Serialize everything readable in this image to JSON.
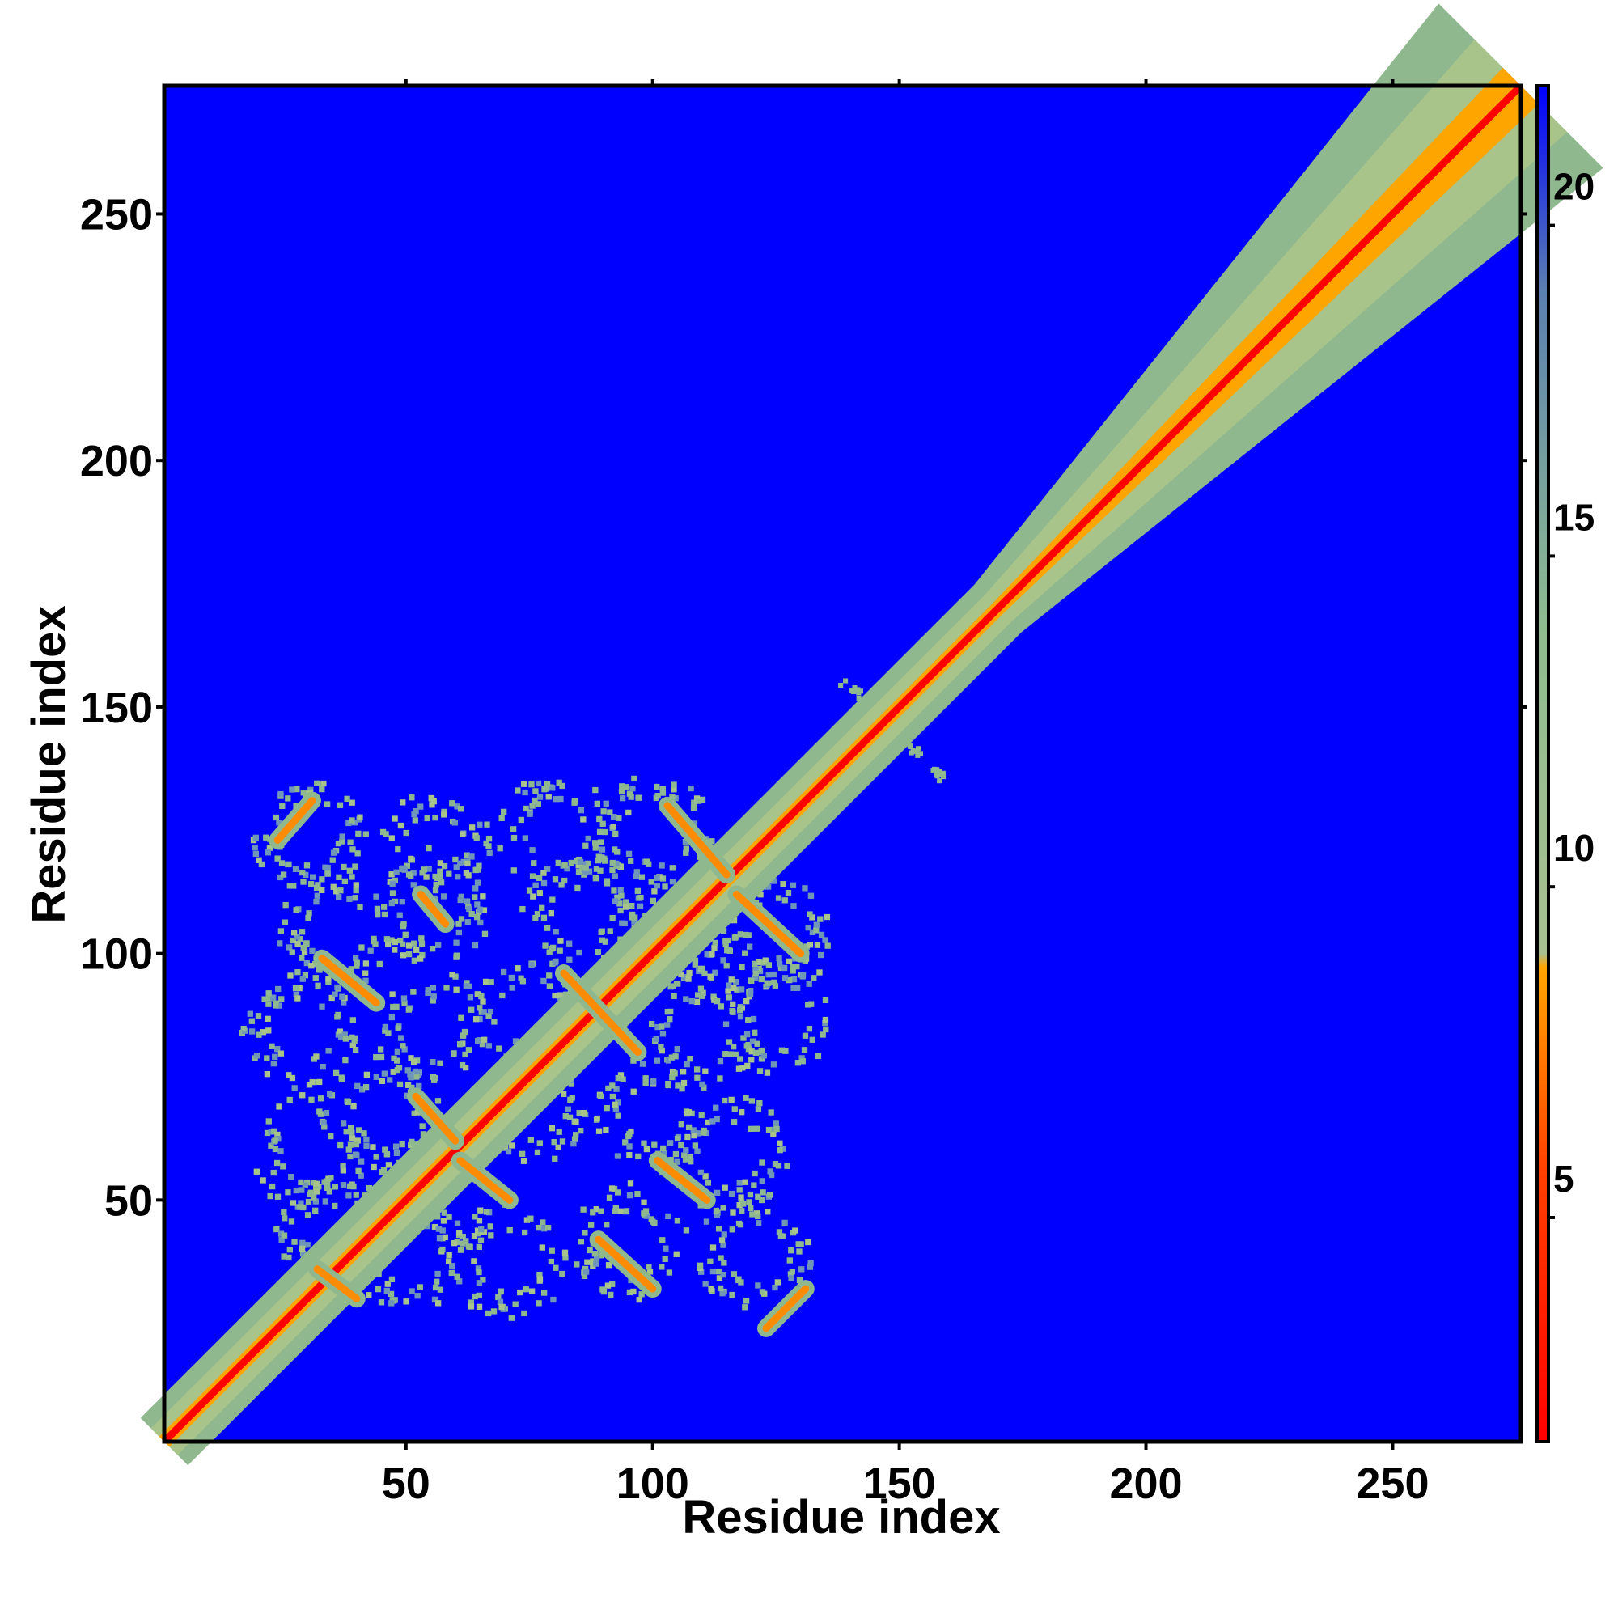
{
  "chart_data": {
    "type": "heatmap",
    "title": "",
    "xlabel": "Residue index",
    "ylabel": "Residue index",
    "xlim": [
      1,
      276
    ],
    "ylim": [
      1,
      276
    ],
    "x_ticks": [
      50,
      100,
      150,
      200,
      250
    ],
    "y_ticks": [
      50,
      100,
      150,
      200,
      250
    ],
    "colorbar": {
      "range": [
        1,
        21.5
      ],
      "ticks": [
        5,
        10,
        15,
        20
      ],
      "colors": [
        "#ff0000",
        "#ff5a00",
        "#ffa500",
        "#8fbc8f",
        "#5f8fbf",
        "#0000ff"
      ]
    },
    "description_values": {
      "background_value": 21.5,
      "diagonal_value": 1,
      "near_diagonal_band_value": 10,
      "domain_region": [
        10,
        135
      ],
      "contact_lines": [
        {
          "from": [
            24,
            123
          ],
          "to": [
            31,
            131
          ]
        },
        {
          "from": [
            53,
            112
          ],
          "to": [
            58,
            106
          ]
        },
        {
          "from": [
            33,
            99
          ],
          "to": [
            44,
            90
          ]
        },
        {
          "from": [
            82,
            96
          ],
          "to": [
            97,
            80
          ]
        },
        {
          "from": [
            103,
            130
          ],
          "to": [
            115,
            116
          ]
        },
        {
          "from": [
            117,
            112
          ],
          "to": [
            130,
            100
          ]
        },
        {
          "from": [
            52,
            71
          ],
          "to": [
            60,
            62
          ]
        },
        {
          "from": [
            61,
            58
          ],
          "to": [
            71,
            50
          ]
        },
        {
          "from": [
            101,
            58
          ],
          "to": [
            111,
            50
          ]
        },
        {
          "from": [
            89,
            42
          ],
          "to": [
            100,
            32
          ]
        },
        {
          "from": [
            123,
            24
          ],
          "to": [
            131,
            32
          ]
        },
        {
          "from": [
            32,
            36
          ],
          "to": [
            40,
            30
          ]
        }
      ]
    }
  }
}
